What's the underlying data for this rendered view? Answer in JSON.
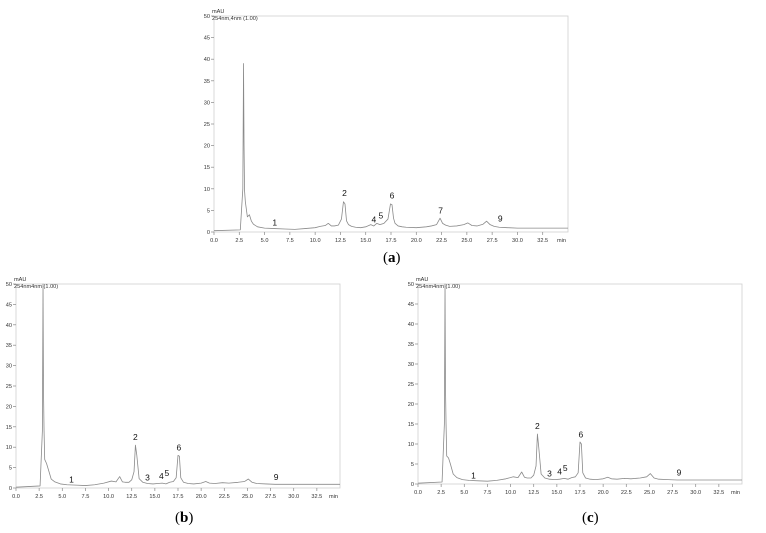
{
  "chart_data": [
    {
      "id": "a",
      "type": "line",
      "caption": "a",
      "ylabel": "mAU",
      "trace_label": "254nm,4nm (1.00)",
      "xlabel": "min",
      "xlim": [
        0,
        35
      ],
      "ylim": [
        0,
        50
      ],
      "xticks": [
        "0.0",
        "2.5",
        "5.0",
        "7.5",
        "10.0",
        "12.5",
        "15.0",
        "17.5",
        "20.0",
        "22.5",
        "25.0",
        "27.5",
        "30.0",
        "32.5"
      ],
      "yticks": [
        "0",
        "5",
        "10",
        "15",
        "20",
        "25",
        "30",
        "35",
        "40",
        "45",
        "50"
      ],
      "x": [
        0,
        2.6,
        2.85,
        2.92,
        2.97,
        3.02,
        3.1,
        3.3,
        3.5,
        3.7,
        3.9,
        4.3,
        5,
        6,
        7,
        8,
        9,
        10,
        10.5,
        11,
        11.3,
        11.6,
        11.9,
        12.3,
        12.6,
        12.8,
        12.95,
        13.1,
        13.3,
        13.6,
        14,
        14.5,
        15,
        15.5,
        15.8,
        16.1,
        16.4,
        16.8,
        17.2,
        17.45,
        17.6,
        17.75,
        17.9,
        18.2,
        18.6,
        19,
        20,
        21,
        21.5,
        22,
        22.35,
        22.6,
        22.9,
        23.3,
        24,
        24.7,
        25.1,
        25.5,
        26,
        26.6,
        26.95,
        27.3,
        27.7,
        28.2,
        29,
        30,
        32,
        35
      ],
      "y": [
        0.3,
        0.5,
        10,
        39,
        20,
        9.5,
        7,
        3.5,
        4,
        2.5,
        1.8,
        1.2,
        0.9,
        0.8,
        0.7,
        0.6,
        0.8,
        1,
        1.3,
        1.5,
        2,
        1.4,
        1.4,
        1.6,
        3,
        7,
        6.5,
        2.6,
        1.7,
        1.3,
        1.1,
        1,
        1.2,
        1.7,
        1.4,
        2,
        1.7,
        2,
        3,
        6.5,
        6.3,
        3.2,
        2,
        1.4,
        1.2,
        1.1,
        1,
        1.2,
        1.4,
        1.7,
        3.2,
        2,
        1.6,
        1.3,
        1.4,
        1.7,
        2.1,
        1.5,
        1.4,
        1.8,
        2.5,
        1.7,
        1.3,
        1.1,
        1,
        0.9,
        0.9,
        0.9
      ],
      "peak_labels": [
        {
          "label": "1",
          "x": 6.0,
          "y": 1.5
        },
        {
          "label": "2",
          "x": 12.9,
          "y": 8.3
        },
        {
          "label": "4",
          "x": 15.8,
          "y": 2.2
        },
        {
          "label": "5",
          "x": 16.5,
          "y": 3.1
        },
        {
          "label": "6",
          "x": 17.6,
          "y": 7.8
        },
        {
          "label": "7",
          "x": 22.4,
          "y": 4.3
        },
        {
          "label": "9",
          "x": 28.3,
          "y": 2.4
        }
      ]
    },
    {
      "id": "b",
      "type": "line",
      "caption": "b",
      "ylabel": "mAU",
      "trace_label": "254nm4nm (1.00)",
      "xlabel": "min",
      "xlim": [
        0,
        35
      ],
      "ylim": [
        0,
        50
      ],
      "xticks": [
        "0.0",
        "2.5",
        "5.0",
        "7.5",
        "10.0",
        "12.5",
        "15.0",
        "17.5",
        "20.0",
        "22.5",
        "25.0",
        "27.5",
        "30.0",
        "32.5"
      ],
      "yticks": [
        "0",
        "5",
        "10",
        "15",
        "20",
        "25",
        "30",
        "35",
        "40",
        "45",
        "50"
      ],
      "x": [
        0,
        2.6,
        2.85,
        2.92,
        2.97,
        3.03,
        3.1,
        3.3,
        3.5,
        3.8,
        4.2,
        4.8,
        5.5,
        6.5,
        7.5,
        8.5,
        9.5,
        10.3,
        10.8,
        11.2,
        11.5,
        11.8,
        12.2,
        12.5,
        12.75,
        12.9,
        13.05,
        13.3,
        13.7,
        14.2,
        14.8,
        15.3,
        15.8,
        16.2,
        16.6,
        17,
        17.3,
        17.5,
        17.65,
        17.8,
        18.1,
        18.6,
        19.2,
        20,
        20.5,
        20.9,
        21.5,
        22.3,
        23,
        24,
        24.7,
        25.1,
        25.5,
        26,
        27,
        28,
        30,
        32,
        35
      ],
      "y": [
        0.2,
        0.5,
        14,
        50,
        24,
        14,
        7,
        6,
        4.5,
        2.2,
        1.5,
        1,
        0.8,
        0.7,
        0.6,
        0.8,
        1.2,
        1.7,
        1.5,
        2.8,
        1.5,
        1.4,
        1.4,
        2,
        4,
        10.5,
        8,
        2.3,
        1.4,
        1.1,
        1,
        1.1,
        1.2,
        1,
        1.4,
        1.6,
        2.5,
        8,
        7.8,
        2.5,
        1.4,
        1.1,
        1,
        1.2,
        1.6,
        1.2,
        1.1,
        1.3,
        1.2,
        1.4,
        1.6,
        2.2,
        1.4,
        1.1,
        1,
        0.9,
        0.9,
        0.9,
        0.9
      ],
      "peak_labels": [
        {
          "label": "1",
          "x": 6.0,
          "y": 1.3
        },
        {
          "label": "2",
          "x": 12.9,
          "y": 11.8
        },
        {
          "label": "3",
          "x": 14.2,
          "y": 1.8
        },
        {
          "label": "4",
          "x": 15.7,
          "y": 2.2
        },
        {
          "label": "5",
          "x": 16.3,
          "y": 3.0
        },
        {
          "label": "6",
          "x": 17.6,
          "y": 9.2
        },
        {
          "label": "9",
          "x": 28.1,
          "y": 1.9
        }
      ]
    },
    {
      "id": "c",
      "type": "line",
      "caption": "c",
      "ylabel": "mAU",
      "trace_label": "254nm4nm (1.00)",
      "xlabel": "min",
      "xlim": [
        0,
        35
      ],
      "ylim": [
        0,
        50
      ],
      "xticks": [
        "0.0",
        "2.5",
        "5.0",
        "7.5",
        "10.0",
        "12.5",
        "15.0",
        "17.5",
        "20.0",
        "22.5",
        "25.0",
        "27.5",
        "30.0",
        "32.5"
      ],
      "yticks": [
        "0",
        "5",
        "10",
        "15",
        "20",
        "25",
        "30",
        "35",
        "40",
        "45",
        "50"
      ],
      "x": [
        0,
        2.6,
        2.85,
        2.92,
        2.97,
        3.03,
        3.1,
        3.3,
        3.5,
        3.8,
        4.2,
        4.8,
        5.5,
        6.5,
        7.5,
        8.5,
        9.5,
        10.3,
        10.8,
        11.2,
        11.5,
        11.8,
        12.2,
        12.5,
        12.75,
        12.9,
        13.05,
        13.3,
        13.7,
        14.2,
        14.8,
        15.3,
        15.8,
        16.2,
        16.6,
        17,
        17.3,
        17.5,
        17.65,
        17.8,
        18.1,
        18.6,
        19.2,
        20,
        20.5,
        20.9,
        21.5,
        22.3,
        23,
        24,
        24.7,
        25.1,
        25.5,
        26,
        27,
        28,
        30,
        32,
        35
      ],
      "y": [
        0.2,
        0.5,
        15,
        50,
        24,
        15,
        7,
        6.5,
        5,
        2.5,
        1.6,
        1.1,
        0.9,
        0.8,
        0.7,
        0.9,
        1.3,
        1.8,
        1.6,
        3,
        1.7,
        1.5,
        1.5,
        2.2,
        4.5,
        12.5,
        9,
        2.5,
        1.5,
        1.2,
        1.1,
        1.2,
        1.4,
        1.2,
        1.6,
        1.8,
        2.8,
        10.5,
        10,
        2.8,
        1.5,
        1.2,
        1.1,
        1.3,
        1.7,
        1.3,
        1.2,
        1.4,
        1.3,
        1.5,
        1.8,
        2.6,
        1.5,
        1.2,
        1.1,
        1,
        1,
        1,
        1
      ],
      "peak_labels": [
        {
          "label": "1",
          "x": 6.0,
          "y": 1.4
        },
        {
          "label": "2",
          "x": 12.9,
          "y": 13.7
        },
        {
          "label": "3",
          "x": 14.2,
          "y": 1.9
        },
        {
          "label": "4",
          "x": 15.3,
          "y": 2.4
        },
        {
          "label": "5",
          "x": 15.9,
          "y": 3.2
        },
        {
          "label": "6",
          "x": 17.6,
          "y": 11.6
        },
        {
          "label": "9",
          "x": 28.2,
          "y": 2.1
        }
      ]
    }
  ]
}
